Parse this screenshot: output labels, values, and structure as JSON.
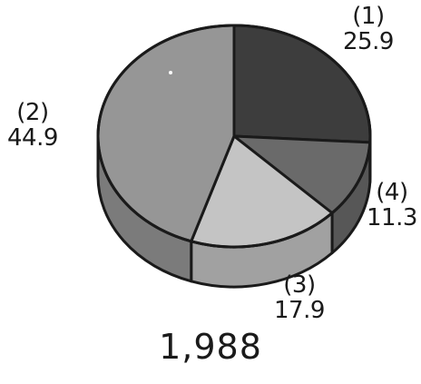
{
  "chart_data": {
    "type": "pie",
    "title": "1,988",
    "slices": [
      {
        "id": "(1)",
        "value": 25.9,
        "color": "#3d3d3d"
      },
      {
        "id": "(4)",
        "value": 11.3,
        "color": "#6a6a6a"
      },
      {
        "id": "(3)",
        "value": 17.9,
        "color": "#c4c4c4"
      },
      {
        "id": "(2)",
        "value": 44.9,
        "color": "#969696"
      }
    ]
  }
}
